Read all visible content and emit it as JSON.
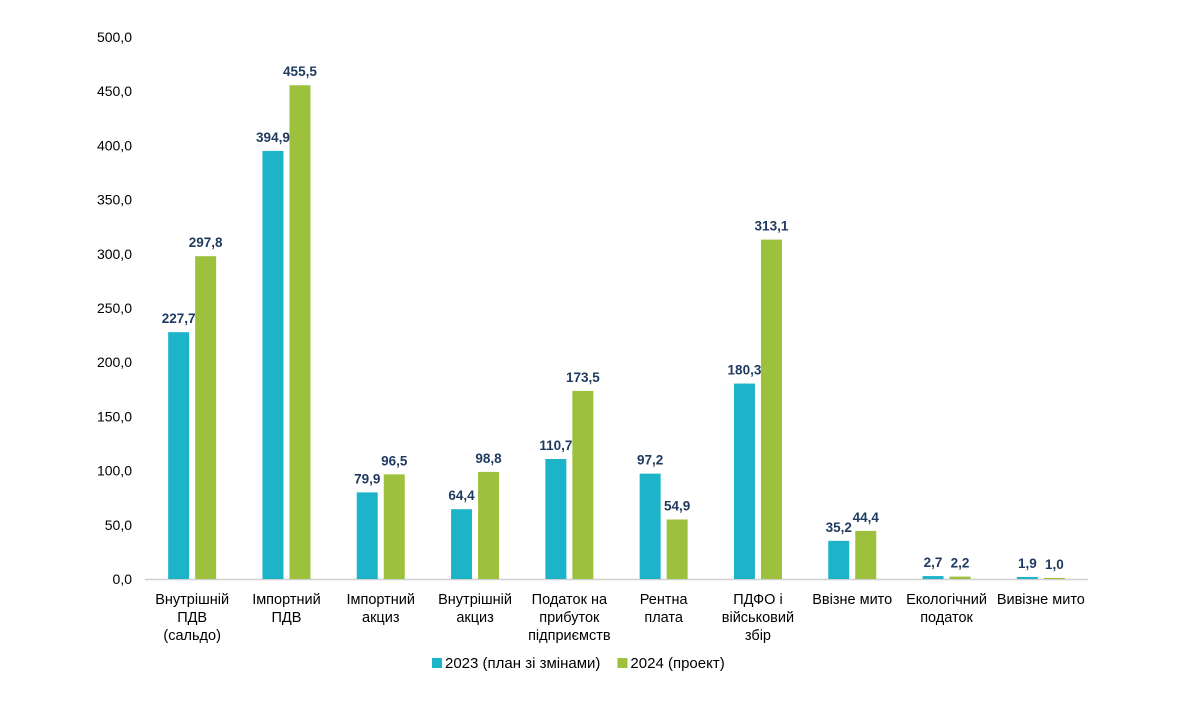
{
  "chart_data": {
    "type": "bar",
    "title": "",
    "xlabel": "",
    "ylabel": "",
    "ylim": [
      0,
      500
    ],
    "yticks": [
      "0,0",
      "50,0",
      "100,0",
      "150,0",
      "200,0",
      "250,0",
      "300,0",
      "350,0",
      "400,0",
      "450,0",
      "500,0"
    ],
    "categories": [
      [
        "Внутрішній",
        "ПДВ",
        "(сальдо)"
      ],
      [
        "Імпортний",
        "ПДВ"
      ],
      [
        "Імпортний",
        "акциз"
      ],
      [
        "Внутрішній",
        "акциз"
      ],
      [
        "Податок на",
        "прибуток",
        "підприємств"
      ],
      [
        "Рентна",
        "плата"
      ],
      [
        "ПДФО і",
        "військовий",
        "збір"
      ],
      [
        "Ввізне мито"
      ],
      [
        "Екологічний",
        "податок"
      ],
      [
        "Вивізне мито"
      ]
    ],
    "series": [
      {
        "name": "2023 (план зі змінами)",
        "color": "#1db4c9",
        "values": [
          227.7,
          394.9,
          79.9,
          64.4,
          110.7,
          97.2,
          180.3,
          35.2,
          2.7,
          1.9
        ],
        "labels": [
          "227,7",
          "394,9",
          "79,9",
          "64,4",
          "110,7",
          "97,2",
          "180,3",
          "35,2",
          "2,7",
          "1,9"
        ]
      },
      {
        "name": "2024 (проект)",
        "color": "#9dc13c",
        "values": [
          297.8,
          455.5,
          96.5,
          98.8,
          173.5,
          54.9,
          313.1,
          44.4,
          2.2,
          1.0
        ],
        "labels": [
          "297,8",
          "455,5",
          "96,5",
          "98,8",
          "173,5",
          "54,9",
          "313,1",
          "44,4",
          "2,2",
          "1,0"
        ]
      }
    ],
    "legend": "bottom",
    "grid": false
  }
}
